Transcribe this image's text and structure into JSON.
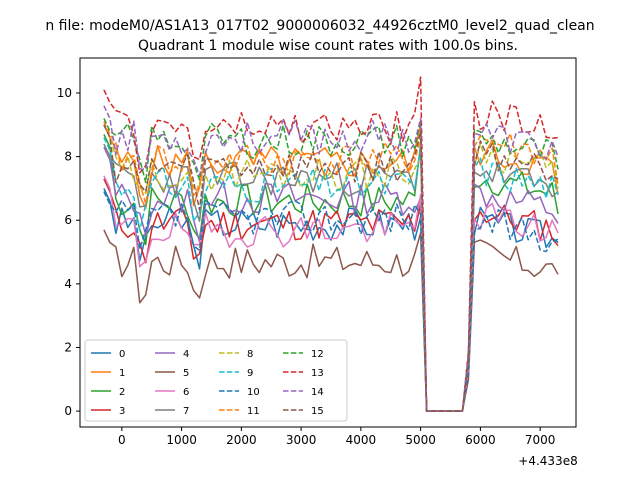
{
  "figure": {
    "suptitle": "n file: modeM0/AS1A13_017T02_9000006032_44926cztM0_level2_quad_clean",
    "title": "Quadrant 1 module wise count rates with 100.0s bins.",
    "offset_text": "+4.433e8"
  },
  "chart_data": {
    "type": "line",
    "title": "Quadrant 1 module wise count rates with 100.0s bins.",
    "xlabel": "",
    "ylabel": "",
    "x_offset": 443300000,
    "xlim": [
      -700,
      7600
    ],
    "ylim": [
      -0.5,
      11.1
    ],
    "xticks": [
      0,
      1000,
      2000,
      3000,
      4000,
      5000,
      6000,
      7000
    ],
    "yticks": [
      0,
      2,
      4,
      6,
      8,
      10
    ],
    "grid": false,
    "legend": {
      "location": "lower left",
      "columns": 4
    },
    "x": [
      -300,
      -200,
      -100,
      0,
      100,
      200,
      300,
      400,
      500,
      600,
      700,
      800,
      900,
      1000,
      1100,
      1200,
      1300,
      1400,
      1500,
      1600,
      1700,
      1800,
      1900,
      2000,
      2100,
      2200,
      2300,
      2400,
      2500,
      2600,
      2700,
      2800,
      2900,
      3000,
      3100,
      3200,
      3300,
      3400,
      3500,
      3600,
      3700,
      3800,
      3900,
      4000,
      4100,
      4200,
      4300,
      4400,
      4500,
      4600,
      4700,
      4800,
      4900,
      5000,
      5100,
      5200,
      5300,
      5400,
      5500,
      5600,
      5700,
      5800,
      5900,
      6000,
      6100,
      6200,
      6300,
      6400,
      6500,
      6600,
      6700,
      6800,
      6900,
      7000,
      7100,
      7200,
      7300
    ],
    "series": [
      {
        "name": "0",
        "color": "#1f77b4",
        "dash": "solid",
        "level": 5.9,
        "start": 7.0,
        "pre_end": 6.1,
        "post": 6.0,
        "end": 5.3,
        "seed": 3
      },
      {
        "name": "1",
        "color": "#ff7f0e",
        "dash": "solid",
        "level": 7.8,
        "start": 9.0,
        "pre_end": 9.0,
        "post": 8.2,
        "end": 6.8,
        "seed": 5
      },
      {
        "name": "2",
        "color": "#2ca02c",
        "dash": "solid",
        "level": 6.6,
        "start": 8.7,
        "pre_end": 8.4,
        "post": 7.4,
        "end": 6.2,
        "seed": 7
      },
      {
        "name": "3",
        "color": "#d62728",
        "dash": "solid",
        "level": 5.9,
        "start": 7.3,
        "pre_end": 6.5,
        "post": 6.3,
        "end": 5.2,
        "seed": 11
      },
      {
        "name": "4",
        "color": "#9467bd",
        "dash": "solid",
        "level": 6.7,
        "start": 8.3,
        "pre_end": 6.7,
        "post": 6.9,
        "end": 5.9,
        "seed": 13
      },
      {
        "name": "5",
        "color": "#8c564b",
        "dash": "solid",
        "level": 4.7,
        "start": 5.7,
        "pre_end": 5.6,
        "post": 5.0,
        "end": 4.3,
        "seed": 17
      },
      {
        "name": "6",
        "color": "#e377c2",
        "dash": "solid",
        "level": 5.7,
        "start": 7.4,
        "pre_end": 6.8,
        "post": 6.2,
        "end": 5.6,
        "seed": 19
      },
      {
        "name": "7",
        "color": "#7f7f7f",
        "dash": "solid",
        "level": 7.3,
        "start": 8.4,
        "pre_end": 8.3,
        "post": 7.6,
        "end": 6.9,
        "seed": 23
      },
      {
        "name": "8",
        "color": "#bcbd22",
        "dash": "dashed",
        "level": 7.5,
        "start": 9.0,
        "pre_end": 8.0,
        "post": 8.2,
        "end": 7.0,
        "seed": 29
      },
      {
        "name": "9",
        "color": "#17becf",
        "dash": "dashed",
        "level": 7.1,
        "start": 8.6,
        "pre_end": 8.3,
        "post": 7.6,
        "end": 6.8,
        "seed": 31
      },
      {
        "name": "10",
        "color": "#1f77b4",
        "dash": "dashed",
        "level": 6.1,
        "start": 6.9,
        "pre_end": 6.2,
        "post": 6.0,
        "end": 5.4,
        "seed": 37
      },
      {
        "name": "11",
        "color": "#ff7f0e",
        "dash": "dashed",
        "level": 7.9,
        "start": 9.1,
        "pre_end": 8.6,
        "post": 8.6,
        "end": 7.1,
        "seed": 41
      },
      {
        "name": "12",
        "color": "#2ca02c",
        "dash": "dashed",
        "level": 8.5,
        "start": 9.2,
        "pre_end": 9.1,
        "post": 8.6,
        "end": 7.6,
        "seed": 43
      },
      {
        "name": "13",
        "color": "#d62728",
        "dash": "dashed",
        "level": 8.9,
        "start": 10.1,
        "pre_end": 10.5,
        "post": 9.4,
        "end": 8.6,
        "seed": 47
      },
      {
        "name": "14",
        "color": "#9467bd",
        "dash": "dashed",
        "level": 8.6,
        "start": 9.6,
        "pre_end": 9.2,
        "post": 8.8,
        "end": 8.0,
        "seed": 53
      },
      {
        "name": "15",
        "color": "#8c564b",
        "dash": "dashed",
        "level": 7.7,
        "start": 9.0,
        "pre_end": 8.8,
        "post": 8.2,
        "end": 7.3,
        "seed": 59
      }
    ]
  }
}
